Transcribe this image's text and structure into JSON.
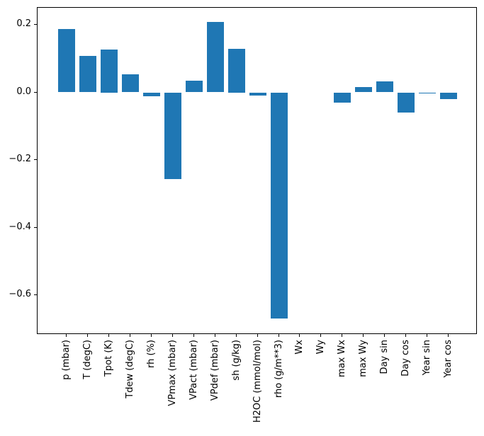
{
  "figure": {
    "background_color": "#ffffff",
    "spine_color": "#000000",
    "text_color": "#000000"
  },
  "chart_data": {
    "type": "bar",
    "title": "",
    "xlabel": "",
    "ylabel": "",
    "categories": [
      "p (mbar)",
      "T (degC)",
      "Tpot (K)",
      "Tdew (degC)",
      "rh (%)",
      "VPmax (mbar)",
      "VPact (mbar)",
      "VPdef (mbar)",
      "sh (g/kg)",
      "H2OC (mmol/mol)",
      "rho (g/m**3)",
      "Wx",
      "Wy",
      "max Wx",
      "max Wy",
      "Day sin",
      "Day cos",
      "Year sin",
      "Year cos"
    ],
    "values": [
      0.187,
      0.107,
      0.127,
      0.053,
      -0.01,
      -0.256,
      0.034,
      0.208,
      0.129,
      -0.008,
      -0.668,
      0.0,
      0.0,
      -0.029,
      0.015,
      0.032,
      -0.058,
      -0.002,
      -0.019
    ],
    "bar_color": "#1f77b4",
    "ylim": [
      -0.717,
      0.25
    ],
    "yticks": [
      0.2,
      0.0,
      -0.2,
      -0.4,
      -0.6
    ],
    "ytick_labels": [
      "0.2",
      "0.0",
      "−0.2",
      "−0.4",
      "−0.6"
    ],
    "xtick_rotation": 90,
    "grid": false,
    "legend": false
  }
}
